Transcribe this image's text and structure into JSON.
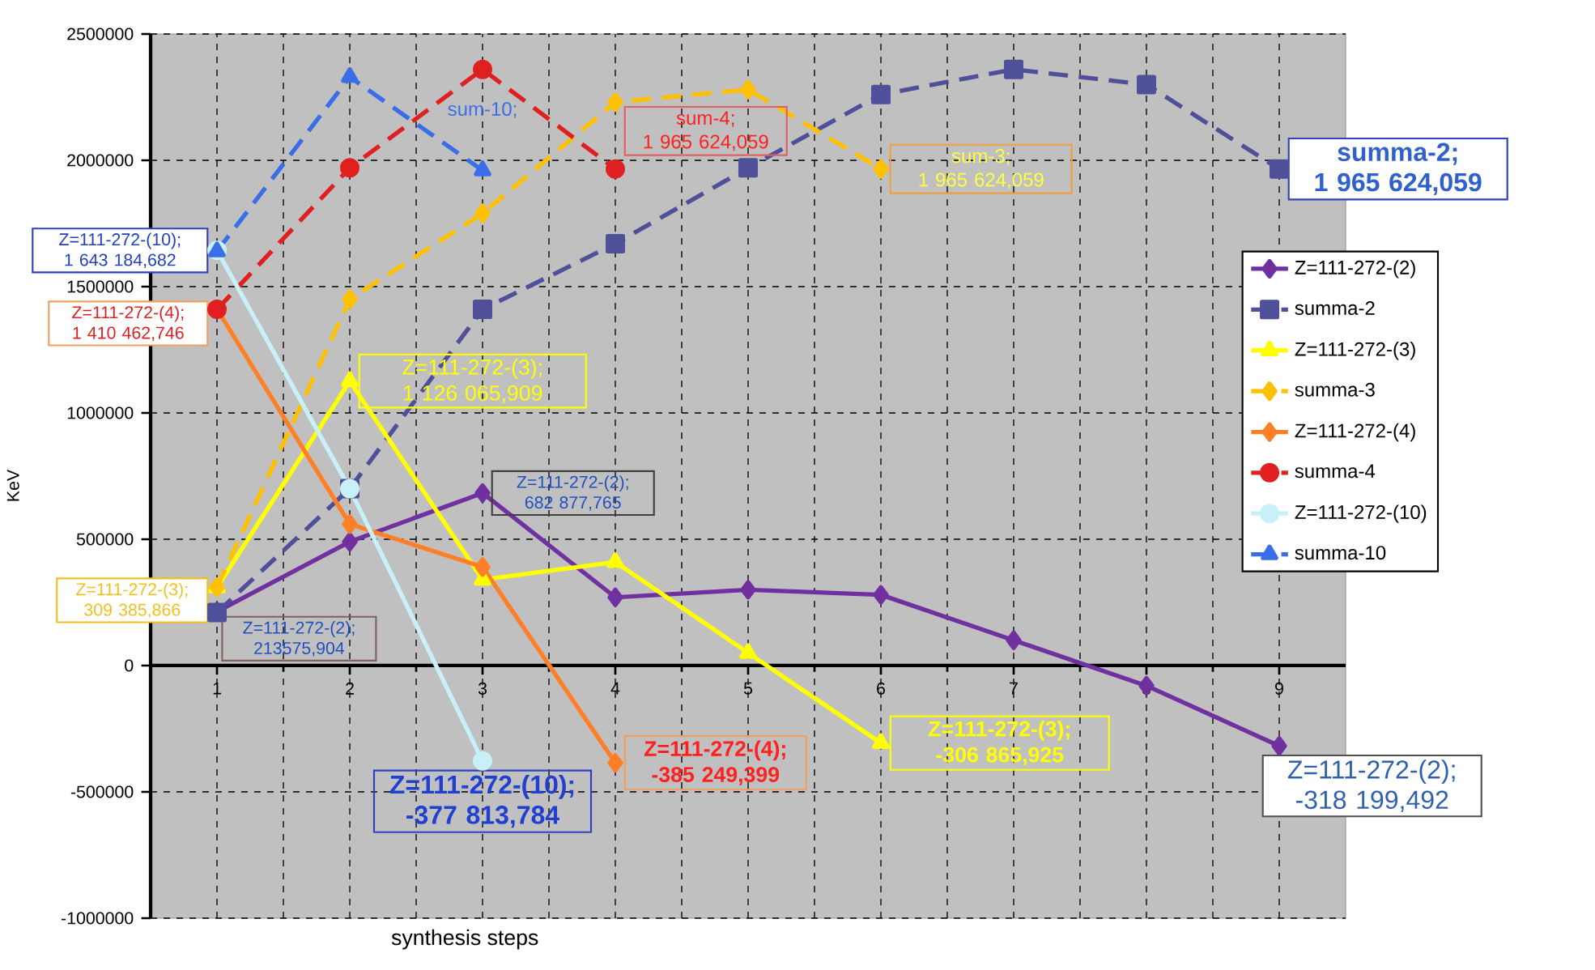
{
  "chart_data": {
    "type": "line",
    "xlabel": "synthesis steps",
    "ylabel": "KeV",
    "x": [
      1,
      2,
      3,
      4,
      5,
      6,
      7,
      8,
      9
    ],
    "xlim": [
      0.5,
      9.5
    ],
    "xticks": [
      1,
      2,
      3,
      4,
      5,
      6,
      7,
      8,
      9
    ],
    "ylim": [
      -1000000,
      2500000
    ],
    "yticks": [
      -1000000,
      -500000,
      0,
      500000,
      1000000,
      1500000,
      2000000,
      2500000
    ],
    "grid": true,
    "legend": "right",
    "series": [
      {
        "name": "Z=111-272-(2)",
        "color": "#7030a0",
        "marker": "diamond",
        "line_style": "solid",
        "values": [
          213575.904,
          490000,
          682877.765,
          270000,
          300000,
          280000,
          100000,
          -80000,
          -318199.492
        ]
      },
      {
        "name": "summa-2",
        "color": "#50509a",
        "marker": "square",
        "line_style": "dashed",
        "values": [
          210000,
          700000,
          1410000,
          1670000,
          1970000,
          2260000,
          2360000,
          2300000,
          1965624.059
        ]
      },
      {
        "name": "Z=111-272-(3)",
        "color": "#ffff00",
        "marker": "triangle",
        "line_style": "solid",
        "values": [
          309385.866,
          1126065.909,
          340000,
          410000,
          50000,
          -306865.925,
          null,
          null,
          null
        ]
      },
      {
        "name": "summa-3",
        "color": "#ffc000",
        "marker": "diamond",
        "line_style": "dashed",
        "values": [
          310000,
          1450000,
          1790000,
          2230000,
          2280000,
          1965624.059,
          null,
          null,
          null
        ]
      },
      {
        "name": "Z=111-272-(4)",
        "color": "#ff7f27",
        "marker": "diamond",
        "line_style": "solid",
        "values": [
          1410462.746,
          560000,
          390000,
          -385249.399,
          null,
          null,
          null,
          null,
          null
        ]
      },
      {
        "name": "summa-4",
        "color": "#e02020",
        "marker": "circle",
        "line_style": "dashed",
        "values": [
          1410000,
          1970000,
          2360000,
          1965624.059,
          null,
          null,
          null,
          null,
          null
        ]
      },
      {
        "name": "Z=111-272-(10)",
        "color": "#c8f0f8",
        "marker": "circle",
        "line_style": "solid",
        "values": [
          1643184.682,
          700000,
          -377813.784,
          null,
          null,
          null,
          null,
          null,
          null
        ]
      },
      {
        "name": "summa-10",
        "color": "#3a6ee8",
        "marker": "triangle",
        "line_style": "dashed",
        "values": [
          1640000,
          2330000,
          1960000,
          null,
          null,
          null,
          null,
          null,
          null
        ]
      }
    ],
    "annotations": [
      {
        "text": "summa-2; 1 965 624,059",
        "x": 9,
        "y": 1965624.059
      },
      {
        "text": "sum-4; 1 965 624,059",
        "x": 4,
        "y": 1965624.059
      },
      {
        "text": "sum-3; 1 965 624,059",
        "x": 6,
        "y": 1965624.059
      },
      {
        "text": "sum-10;",
        "x": 3,
        "y": 1960000
      },
      {
        "text": "Z=111-272-(10); 1 643 184,682",
        "x": 1,
        "y": 1643184.682
      },
      {
        "text": "Z=111-272-(4); 1 410 462,746",
        "x": 1,
        "y": 1410462.746
      },
      {
        "text": "Z=111-272-(3); 1 126 065,909",
        "x": 2,
        "y": 1126065.909
      },
      {
        "text": "Z=111-272-(2); 682 877,765",
        "x": 3,
        "y": 682877.765
      },
      {
        "text": "Z=111-272-(3); 309 385,866",
        "x": 1,
        "y": 309385.866
      },
      {
        "text": "Z=111-272-(2); 213575,904",
        "x": 1,
        "y": 213575.904
      },
      {
        "text": "Z=111-272-(10); -377 813,784",
        "x": 3,
        "y": -377813.784
      },
      {
        "text": "Z=111-272-(4); -385 249,399",
        "x": 4,
        "y": -385249.399
      },
      {
        "text": "Z=111-272-(3); -306 865,925",
        "x": 6,
        "y": -306865.925
      },
      {
        "text": "Z=111-272-(2); -318 199,492",
        "x": 9,
        "y": -318199.492
      }
    ]
  }
}
